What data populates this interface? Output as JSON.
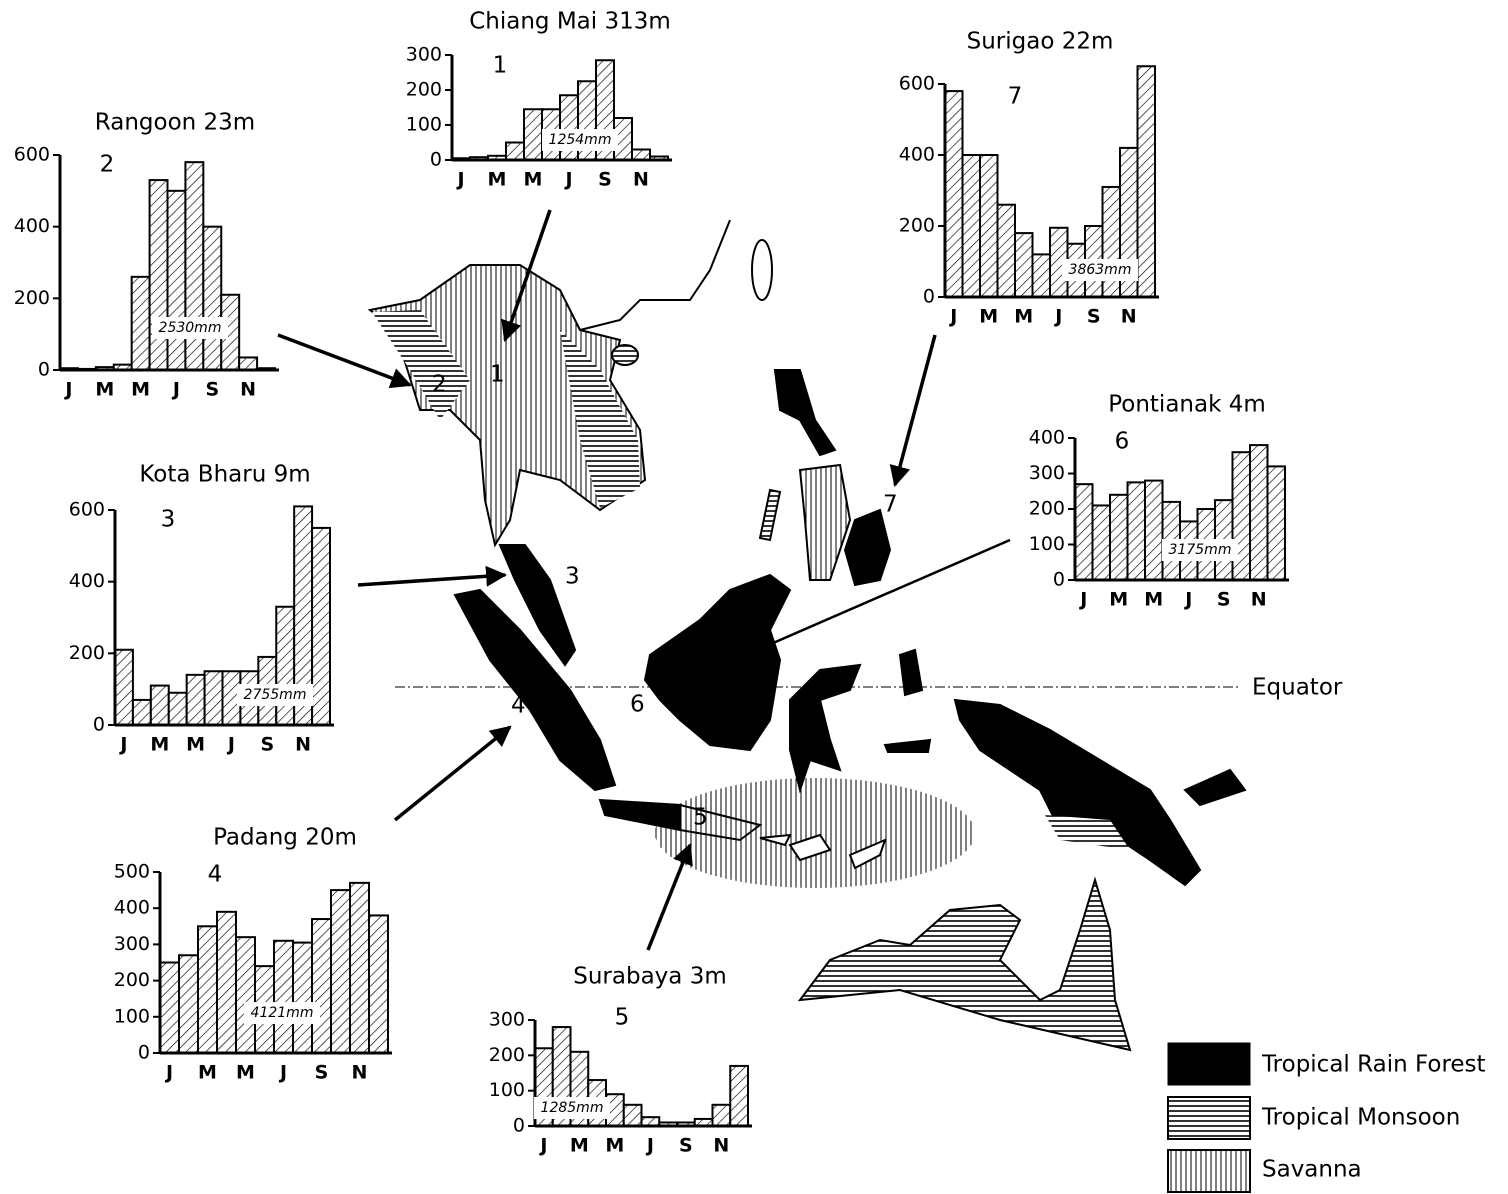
{
  "chart_data": [
    {
      "type": "bar",
      "title": "Rangoon 23m",
      "station": "2",
      "total": "2530mm",
      "categories": [
        "J",
        null,
        "M",
        null,
        "M",
        null,
        "J",
        null,
        "S",
        null,
        "N",
        null
      ],
      "values": [
        5,
        3,
        8,
        15,
        260,
        530,
        500,
        580,
        400,
        210,
        35,
        5
      ],
      "ylim": [
        0,
        600
      ],
      "yticks": [
        0,
        200,
        400,
        600
      ]
    },
    {
      "type": "bar",
      "title": "Chiang Mai 313m",
      "station": "1",
      "total": "1254mm",
      "categories": [
        "J",
        null,
        "M",
        null,
        "M",
        null,
        "J",
        null,
        "S",
        null,
        "N",
        null
      ],
      "values": [
        5,
        8,
        12,
        50,
        145,
        145,
        185,
        225,
        285,
        120,
        30,
        10
      ],
      "ylim": [
        0,
        300
      ],
      "yticks": [
        0,
        100,
        200,
        300
      ]
    },
    {
      "type": "bar",
      "title": "Surigao 22m",
      "station": "7",
      "total": "3863mm",
      "categories": [
        "J",
        null,
        "M",
        null,
        "M",
        null,
        "J",
        null,
        "S",
        null,
        "N",
        null
      ],
      "values": [
        580,
        400,
        400,
        260,
        180,
        120,
        195,
        150,
        200,
        310,
        420,
        650
      ],
      "ylim": [
        0,
        600
      ],
      "yticks": [
        0,
        200,
        400,
        600
      ]
    },
    {
      "type": "bar",
      "title": "Pontianak 4m",
      "station": "6",
      "total": "3175mm",
      "categories": [
        "J",
        null,
        "M",
        null,
        "M",
        null,
        "J",
        null,
        "S",
        null,
        "N",
        null
      ],
      "values": [
        270,
        210,
        240,
        275,
        280,
        220,
        165,
        200,
        225,
        360,
        380,
        320
      ],
      "ylim": [
        0,
        400
      ],
      "yticks": [
        0,
        100,
        200,
        300,
        400
      ]
    },
    {
      "type": "bar",
      "title": "Kota Bharu 9m",
      "station": "3",
      "total": "2755mm",
      "categories": [
        "J",
        null,
        "M",
        null,
        "M",
        null,
        "J",
        null,
        "S",
        null,
        "N",
        null
      ],
      "values": [
        210,
        70,
        110,
        90,
        140,
        150,
        150,
        150,
        190,
        330,
        610,
        550
      ],
      "ylim": [
        0,
        600
      ],
      "yticks": [
        0,
        200,
        400,
        600
      ]
    },
    {
      "type": "bar",
      "title": "Padang 20m",
      "station": "4",
      "total": "4121mm",
      "categories": [
        "J",
        null,
        "M",
        null,
        "M",
        null,
        "J",
        null,
        "S",
        null,
        "N",
        null
      ],
      "values": [
        250,
        270,
        350,
        390,
        320,
        240,
        310,
        305,
        370,
        450,
        470,
        380
      ],
      "ylim": [
        0,
        500
      ],
      "yticks": [
        0,
        100,
        200,
        300,
        400,
        500
      ]
    },
    {
      "type": "bar",
      "title": "Surabaya 3m",
      "station": "5",
      "total": "1285mm",
      "categories": [
        "J",
        null,
        "M",
        null,
        "M",
        null,
        "J",
        null,
        "S",
        null,
        "N",
        null
      ],
      "values": [
        220,
        280,
        210,
        130,
        90,
        60,
        25,
        10,
        10,
        20,
        60,
        170
      ],
      "ylim": [
        0,
        300
      ],
      "yticks": [
        0,
        100,
        200,
        300
      ]
    }
  ],
  "map": {
    "station_numbers": [
      "1",
      "2",
      "3",
      "4",
      "5",
      "6",
      "7"
    ],
    "equator": "Equator",
    "legend": [
      "Tropical Rain Forest",
      "Tropical Monsoon",
      "Savanna"
    ]
  }
}
